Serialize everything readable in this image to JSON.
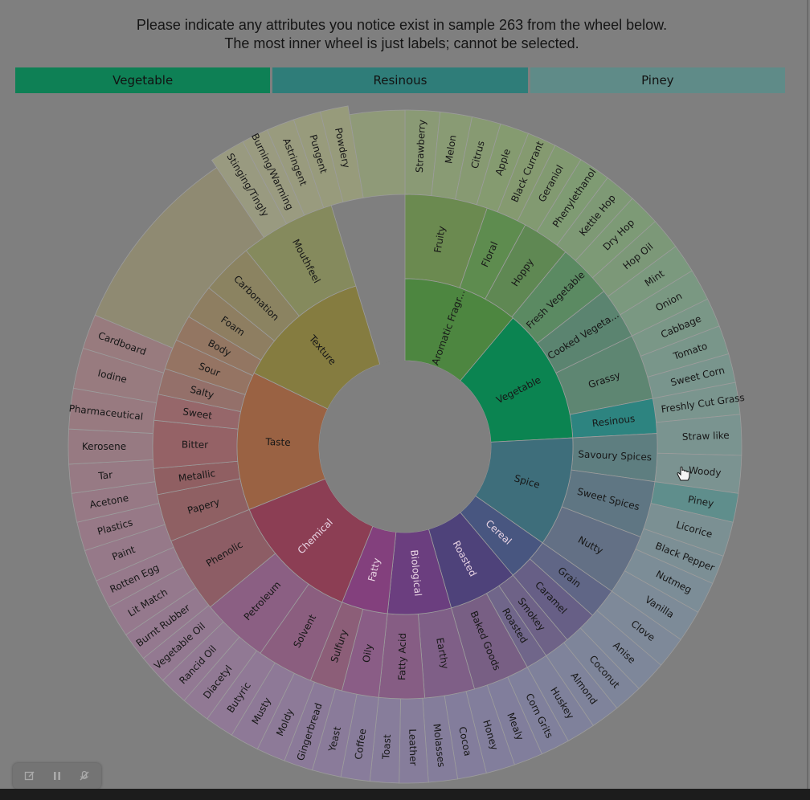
{
  "instructions": {
    "line1": "Please indicate any attributes you notice exist in sample 263 from the wheel below.",
    "line2": "The most inner wheel is just labels; cannot be selected."
  },
  "selected": [
    {
      "label": "Vegetable",
      "color": "#0e8055"
    },
    {
      "label": "Resinous",
      "color": "#2f7d79"
    },
    {
      "label": "Piney",
      "color": "#5f8b88"
    }
  ],
  "wheel": {
    "inner": [
      {
        "label": "Aromatic Fragr...",
        "color": "#4d8640",
        "light": false
      },
      {
        "label": "Vegetable",
        "color": "#0b8451",
        "light": false
      },
      {
        "label": "Spice",
        "color": "#3e6e7b",
        "light": false
      },
      {
        "label": "Cereal",
        "color": "#485680",
        "light": true
      },
      {
        "label": "Roasted",
        "color": "#4e427a",
        "light": true
      },
      {
        "label": "Biological",
        "color": "#6b3e7f",
        "light": true
      },
      {
        "label": "Fatty",
        "color": "#83407d",
        "light": true
      },
      {
        "label": "Chemical",
        "color": "#8c3e54",
        "light": true
      },
      {
        "label": "Taste",
        "color": "#9a6243",
        "light": false
      },
      {
        "label": "Texture",
        "color": "#857c40",
        "light": false
      }
    ],
    "middle": [
      {
        "label": "Fruity",
        "color": "#6b8a50"
      },
      {
        "label": "Floral",
        "color": "#5e8c4f"
      },
      {
        "label": "Hoppy",
        "color": "#5f8853"
      },
      {
        "label": "Fresh Vegetable",
        "color": "#5b8a62"
      },
      {
        "label": "Cooked Vegeta...",
        "color": "#5b8470"
      },
      {
        "label": "Grassy",
        "color": "#5e8672"
      },
      {
        "label": "Resinous",
        "color": "#2d8480"
      },
      {
        "label": "Savoury Spices",
        "color": "#5e7e80"
      },
      {
        "label": "Sweet Spices",
        "color": "#5f7683"
      },
      {
        "label": "Nutty",
        "color": "#637085"
      },
      {
        "label": "Grain",
        "color": "#606686"
      },
      {
        "label": "Caramel",
        "color": "#675f86"
      },
      {
        "label": "Smokey",
        "color": "#6e6287"
      },
      {
        "label": "Roasted",
        "color": "#70668a"
      },
      {
        "label": "Baked Goods",
        "color": "#785f84"
      },
      {
        "label": "Earthy",
        "color": "#7f5f87"
      },
      {
        "label": "Fatty Acid",
        "color": "#865d84"
      },
      {
        "label": "Oily",
        "color": "#8a5d86"
      },
      {
        "label": "Sulfury",
        "color": "#8c5e78"
      },
      {
        "label": "Solvent",
        "color": "#8b5e7f"
      },
      {
        "label": "Petroleum",
        "color": "#8b5f83"
      },
      {
        "label": "Phenolic",
        "color": "#8d5d65"
      },
      {
        "label": "Papery",
        "color": "#8f6063"
      },
      {
        "label": "Metallic",
        "color": "#905f62"
      },
      {
        "label": "Bitter",
        "color": "#956266"
      },
      {
        "label": "Sweet",
        "color": "#96676a"
      },
      {
        "label": "Salty",
        "color": "#94706a"
      },
      {
        "label": "Sour",
        "color": "#957463"
      },
      {
        "label": "Body",
        "color": "#937662"
      },
      {
        "label": "Foam",
        "color": "#8e7e61"
      },
      {
        "label": "Carbonation",
        "color": "#8b8361"
      },
      {
        "label": "Mouthfeel",
        "color": "#858a5d"
      }
    ],
    "outer": [
      {
        "label": "Strawberry",
        "color": "#8a9a75"
      },
      {
        "label": "Melon",
        "color": "#899b74"
      },
      {
        "label": "Citrus",
        "color": "#879a72"
      },
      {
        "label": "Apple",
        "color": "#859b70"
      },
      {
        "label": "Black Currant",
        "color": "#859a70"
      },
      {
        "label": "Geraniol",
        "color": "#829a71"
      },
      {
        "label": "Phenylethanol",
        "color": "#7f9b73"
      },
      {
        "label": "Kettle Hop",
        "color": "#7e9975"
      },
      {
        "label": "Dry Hop",
        "color": "#7d9a76"
      },
      {
        "label": "Hop Oil",
        "color": "#7c9878"
      },
      {
        "label": "Mint",
        "color": "#7b997e"
      },
      {
        "label": "Onion",
        "color": "#7a9882"
      },
      {
        "label": "Cabbage",
        "color": "#7a9787"
      },
      {
        "label": "Tomato",
        "color": "#79968a"
      },
      {
        "label": "Sweet Corn",
        "color": "#79958d"
      },
      {
        "label": "Freshly Cut Grass",
        "color": "#7a958e"
      },
      {
        "label": "Straw like",
        "color": "#7a9490"
      },
      {
        "label": "Woody",
        "color": "#7b9391"
      },
      {
        "label": "Piney",
        "color": "#5f8e8c"
      },
      {
        "label": "Licorice",
        "color": "#7b9093"
      },
      {
        "label": "Black Pepper",
        "color": "#7c8f95"
      },
      {
        "label": "Nutmeg",
        "color": "#7c8d97"
      },
      {
        "label": "Vanilla",
        "color": "#7d8b98"
      },
      {
        "label": "Clove",
        "color": "#7e8999"
      },
      {
        "label": "Anise",
        "color": "#7e879a"
      },
      {
        "label": "Coconut",
        "color": "#7e859a"
      },
      {
        "label": "Almond",
        "color": "#7f839b"
      },
      {
        "label": "Huskey",
        "color": "#7f819b"
      },
      {
        "label": "Corn Grits",
        "color": "#80809c"
      },
      {
        "label": "Mealy",
        "color": "#817e9c"
      },
      {
        "label": "Honey",
        "color": "#827e9c"
      },
      {
        "label": "Cocoa",
        "color": "#837d9c"
      },
      {
        "label": "Molasses",
        "color": "#847d9b"
      },
      {
        "label": "Leather",
        "color": "#867d9b"
      },
      {
        "label": "Toast",
        "color": "#877d9b"
      },
      {
        "label": "Coffee",
        "color": "#887c9b"
      },
      {
        "label": "Yeast",
        "color": "#8a7b9a"
      },
      {
        "label": "Gingerbread",
        "color": "#8b7a99"
      },
      {
        "label": "Moldy",
        "color": "#8d7a98"
      },
      {
        "label": "Musty",
        "color": "#8e7997"
      },
      {
        "label": "Butyric",
        "color": "#907996"
      },
      {
        "label": "Diacetyl",
        "color": "#917994"
      },
      {
        "label": "Rancid Oil",
        "color": "#927993"
      },
      {
        "label": "Vegetable Oil",
        "color": "#937991"
      },
      {
        "label": "Burnt Rubber",
        "color": "#94798f"
      },
      {
        "label": "Lit Match",
        "color": "#95798d"
      },
      {
        "label": "Rotten Egg",
        "color": "#96798b"
      },
      {
        "label": "Paint",
        "color": "#967989"
      },
      {
        "label": "Plastics",
        "color": "#977987"
      },
      {
        "label": "Acetone",
        "color": "#977985"
      },
      {
        "label": "Tar",
        "color": "#977a84"
      },
      {
        "label": "Kerosene",
        "color": "#977a82"
      },
      {
        "label": "Pharmaceutical",
        "color": "#987a80"
      },
      {
        "label": "Iodine",
        "color": "#987b7f"
      },
      {
        "label": "Cardboard",
        "color": "#987b7e"
      },
      {
        "label": "Stinging/Tingly",
        "color": "#999a80"
      },
      {
        "label": "Burning/Warming",
        "color": "#9a9b80"
      },
      {
        "label": "Astringent",
        "color": "#999b7e"
      },
      {
        "label": "Pungent",
        "color": "#989b7c"
      },
      {
        "label": "Powdery",
        "color": "#979b7b"
      }
    ]
  },
  "controls": [
    {
      "name": "annotate-icon"
    },
    {
      "name": "pause-icon"
    },
    {
      "name": "mute-icon"
    }
  ]
}
